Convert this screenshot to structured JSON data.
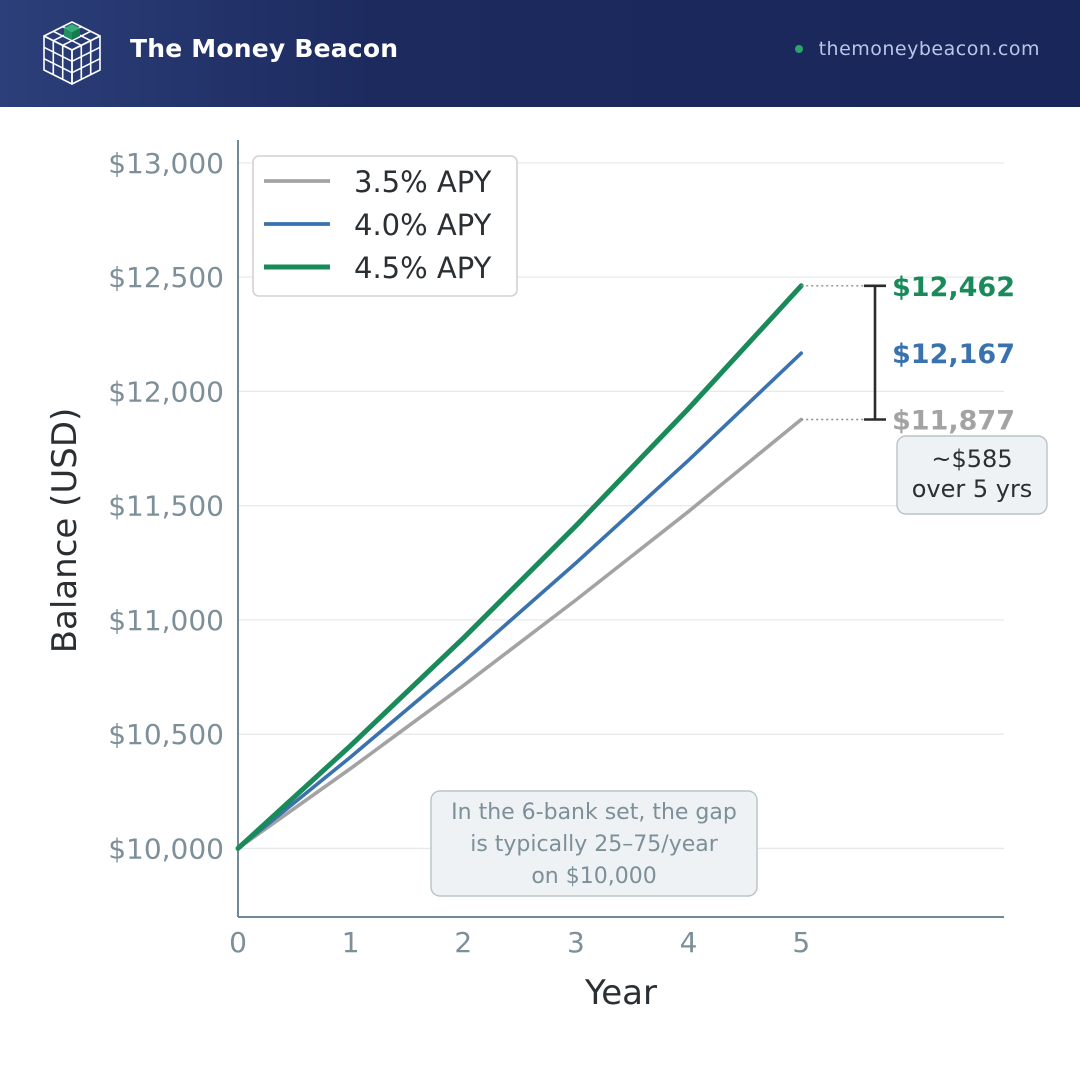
{
  "header": {
    "brand": "The Money Beacon",
    "site": "themoneybeacon.com",
    "logo_icon": "cube-grid-icon",
    "colors": {
      "bar": "#1c2a5e",
      "accent": "#1a8a5a"
    }
  },
  "chart_data": {
    "type": "line",
    "title": "",
    "xlabel": "Year",
    "ylabel": "Balance (USD)",
    "xlim": [
      0,
      6.8
    ],
    "ylim": [
      9700,
      13100
    ],
    "x_ticks": [
      0,
      1,
      2,
      3,
      4,
      5
    ],
    "x_tick_labels": [
      "0",
      "1",
      "2",
      "3",
      "4",
      "5"
    ],
    "y_ticks": [
      10000,
      10500,
      11000,
      11500,
      12000,
      12500,
      13000
    ],
    "y_tick_labels": [
      "$10,000",
      "$10,500",
      "$11,000",
      "$11,500",
      "$12,000",
      "$12,500",
      "$13,000"
    ],
    "grid": "horizontal",
    "legend_position": "top-left",
    "x": [
      0,
      1,
      2,
      3,
      4,
      5
    ],
    "series": [
      {
        "name": "3.5% APY",
        "color": "#a3a3a3",
        "values": [
          10000,
          10350,
          10712,
          11087,
          11475,
          11877
        ],
        "end_label": "$11,877"
      },
      {
        "name": "4.0% APY",
        "color": "#3a72b0",
        "values": [
          10000,
          10400,
          10816,
          11249,
          11699,
          12167
        ],
        "end_label": "$12,167"
      },
      {
        "name": "4.5% APY",
        "color": "#1a8a5a",
        "values": [
          10000,
          10450,
          10920,
          11412,
          11925,
          12462
        ],
        "end_label": "$12,462"
      }
    ],
    "annotations": {
      "gap_lines": [
        "~$585",
        "over 5 yrs"
      ],
      "note_lines": [
        "In the 6-bank set, the gap",
        "is typically 25–75/year",
        "on $10,000"
      ]
    }
  }
}
